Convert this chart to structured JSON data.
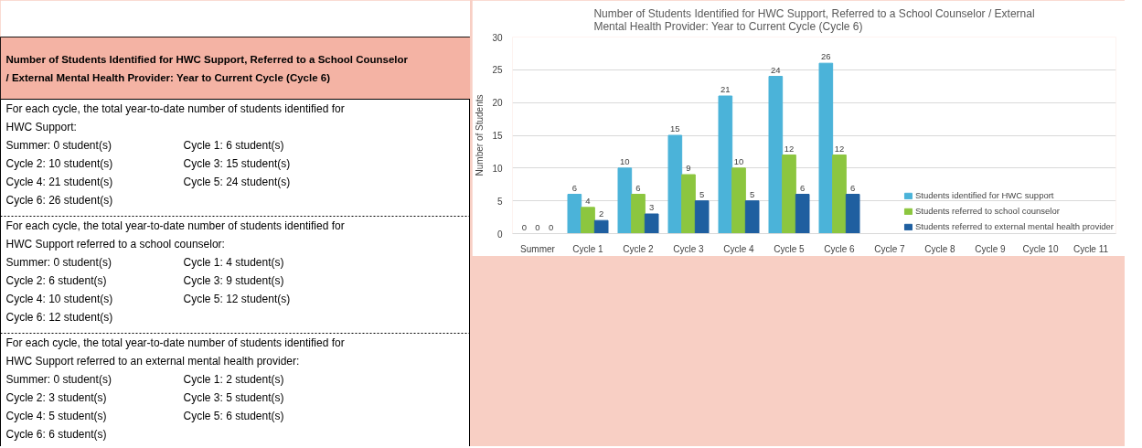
{
  "chart_data": [
    {
      "type": "other",
      "title": "Number of Students Identified for HWC Support, Referred to a School Counselor / External Mental Health Provider: Year to Current Cycle (Cycle 6)",
      "annotations": [
        "For each cycle, the total year-to-date number of students identified for HWC Support:",
        "Summer: 0 student(s)",
        "Cycle 1: 6 student(s)",
        "Cycle 2: 10 student(s)",
        "Cycle 3: 15 student(s)",
        "Cycle 4: 21 student(s)",
        "Cycle 5: 24 student(s)",
        "Cycle 6: 26 student(s)",
        "For each cycle, the total year-to-date number of students identified for HWC Support referred to a school counselor:",
        "Summer: 0 student(s)",
        "Cycle 1: 4 student(s)",
        "Cycle 2: 6 student(s)",
        "Cycle 3: 9 student(s)",
        "Cycle 4: 10 student(s)",
        "Cycle 5: 12 student(s)",
        "Cycle 6: 12 student(s)",
        "For each cycle, the total year-to-date number of students identified for HWC Support referred to an external mental health provider:",
        "Summer: 0 student(s)",
        "Cycle 1: 2 student(s)",
        "Cycle 2: 3 student(s)",
        "Cycle 3: 5 student(s)",
        "Cycle 4: 5 student(s)",
        "Cycle 5: 6 student(s)",
        "Cycle 6: 6 student(s)"
      ]
    },
    {
      "type": "bar",
      "title": "Number of Students Identified for HWC Support, Referred to a School Counselor / External Mental Health Provider: Year to Current Cycle (Cycle 6)",
      "ylabel": "Number of Students",
      "categories": [
        "Summer",
        "Cycle 1",
        "Cycle 2",
        "Cycle 3",
        "Cycle 4",
        "Cycle 5",
        "Cycle 6",
        "Cycle 7",
        "Cycle 8",
        "Cycle 9",
        "Cycle 10",
        "Cycle 11"
      ],
      "series": [
        {
          "name": "Students identified for HWC support",
          "color": "#4bb3d9",
          "values": [
            0,
            6,
            10,
            15,
            21,
            24,
            26,
            null,
            null,
            null,
            null,
            null
          ]
        },
        {
          "name": "Students referred to school counselor",
          "color": "#8cc63f",
          "values": [
            0,
            4,
            6,
            9,
            10,
            12,
            12,
            null,
            null,
            null,
            null,
            null
          ]
        },
        {
          "name": "Students referred to external mental health provider",
          "color": "#1f5fa0",
          "values": [
            0,
            2,
            3,
            5,
            5,
            6,
            6,
            null,
            null,
            null,
            null,
            null
          ]
        }
      ],
      "ylim": [
        0,
        30
      ],
      "yticks": [
        0,
        5,
        10,
        15,
        20,
        25,
        30
      ],
      "grid": "y",
      "legend": "bottom",
      "data_labels": true
    }
  ]
}
